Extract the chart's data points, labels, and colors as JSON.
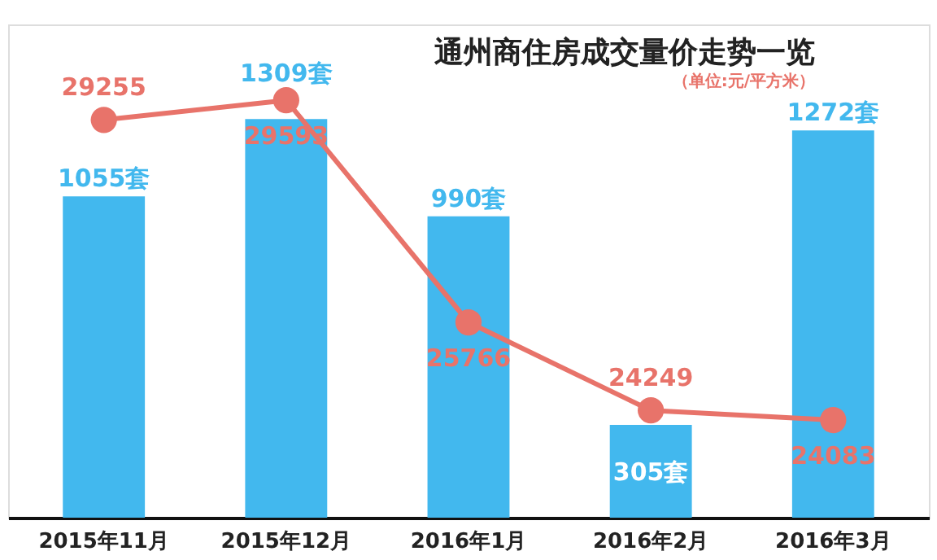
{
  "chart_data": {
    "type": "bar",
    "title": "通州商住房成交量价走势一览",
    "subtitle": "（单位:元/平方米）",
    "categories": [
      "2015年11月",
      "2015年12月",
      "2016年1月",
      "2016年2月",
      "2016年3月"
    ],
    "series": [
      {
        "color": "#42b8ee",
        "values": [
          1055,
          1309,
          990,
          305,
          1272
        ],
        "value_labels": [
          "1055套",
          "1309套",
          "990套",
          "305套",
          "1272套"
        ]
      },
      {
        "type": "line",
        "axis": "y2",
        "color": "#e8736a",
        "values": [
          29255,
          29593,
          25766,
          24249,
          24083
        ],
        "marker": "circle",
        "value_labels": [
          "29255",
          "29593",
          "25766",
          "24249",
          "24083"
        ]
      }
    ],
    "ylim": [
      0,
      1620
    ],
    "y2lim": [
      22400,
      30900
    ],
    "tick_labels": "x",
    "grid": false
  }
}
